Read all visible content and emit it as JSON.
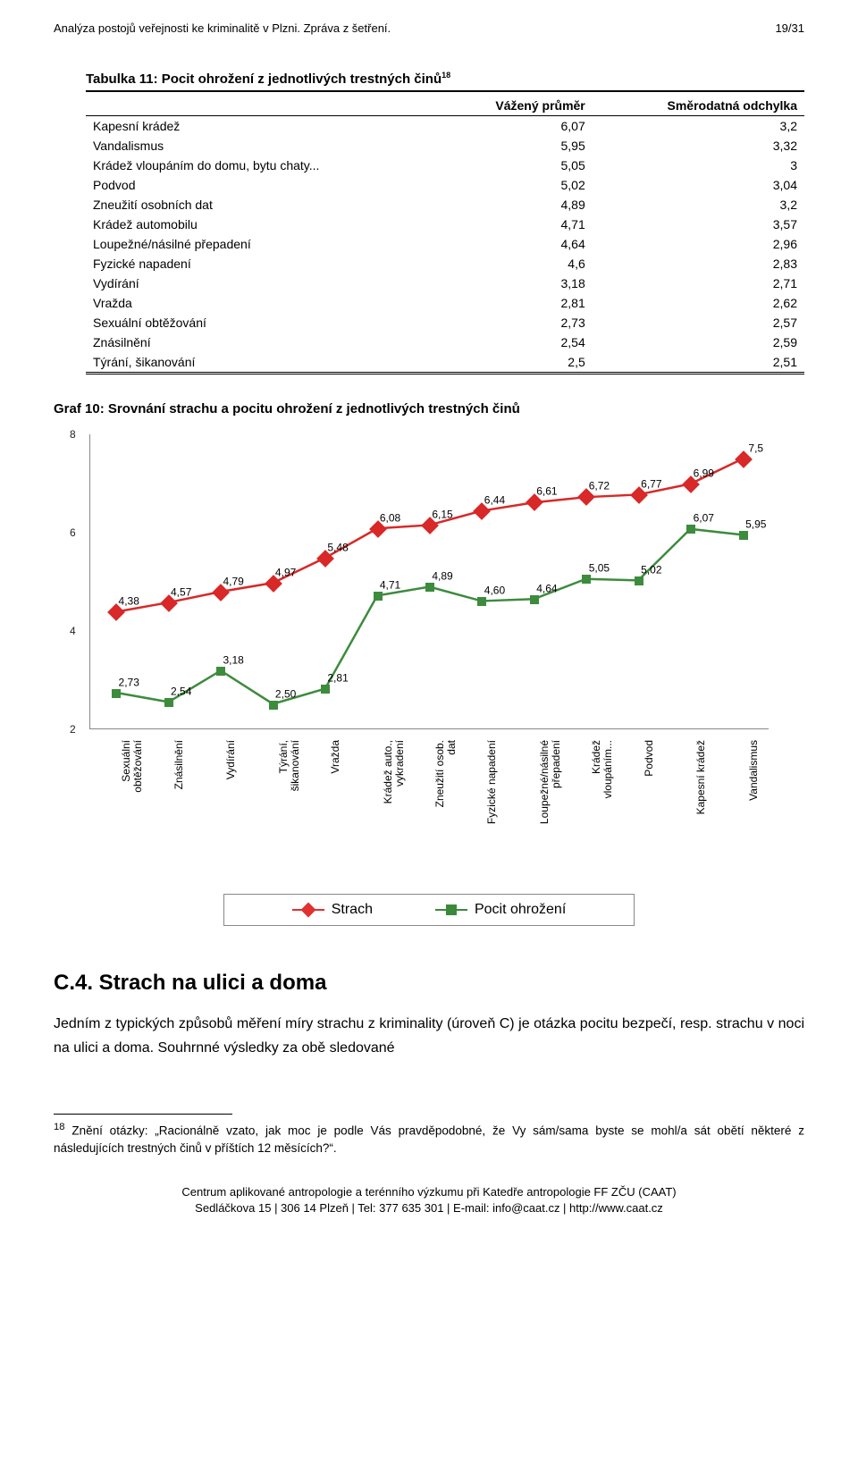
{
  "header": {
    "left": "Analýza postojů veřejnosti ke kriminalitě v Plzni. Zpráva z šetření.",
    "right": "19/31"
  },
  "table": {
    "title_prefix": "Tabulka 11: Pocit ohrožení z jednotlivých trestných činů",
    "title_sup": "18",
    "columns": [
      "",
      "Vážený průměr",
      "Směrodatná odchylka"
    ],
    "rows": [
      [
        "Kapesní krádež",
        "6,07",
        "3,2"
      ],
      [
        "Vandalismus",
        "5,95",
        "3,32"
      ],
      [
        "Krádež vloupáním do domu, bytu chaty...",
        "5,05",
        "3"
      ],
      [
        "Podvod",
        "5,02",
        "3,04"
      ],
      [
        "Zneužití osobních dat",
        "4,89",
        "3,2"
      ],
      [
        "Krádež automobilu",
        "4,71",
        "3,57"
      ],
      [
        "Loupežné/násilné přepadení",
        "4,64",
        "2,96"
      ],
      [
        "Fyzické napadení",
        "4,6",
        "2,83"
      ],
      [
        "Vydírání",
        "3,18",
        "2,71"
      ],
      [
        "Vražda",
        "2,81",
        "2,62"
      ],
      [
        "Sexuální obtěžování",
        "2,73",
        "2,57"
      ],
      [
        "Znásilnění",
        "2,54",
        "2,59"
      ],
      [
        "Týrání, šikanování",
        "2,5",
        "2,51"
      ]
    ]
  },
  "chart": {
    "title": "Graf 10: Srovnání strachu a pocitu ohrožení z jednotlivých trestných činů",
    "ylim": [
      2,
      8
    ],
    "yticks": [
      2,
      4,
      6,
      8
    ],
    "categories": [
      "Sexuální\nobtěžování",
      "Znásilnění",
      "Vydírání",
      "Týrání,\nšikanování",
      "Vražda",
      "Krádež auto.,\nvykradení",
      "Zneužití osob.\ndat",
      "Fyzické napadení",
      "Loupežné/násilné\npřepadení",
      "Krádež\nvloupáním...",
      "Podvod",
      "Kapesní krádež",
      "Vandalismus"
    ],
    "series": [
      {
        "name": "Strach",
        "color": "#d82828",
        "marker": "diamond",
        "values": [
          4.38,
          4.57,
          4.79,
          4.97,
          5.48,
          6.08,
          6.15,
          6.44,
          6.61,
          6.72,
          6.77,
          6.99,
          7.5
        ],
        "labels": [
          "4,38",
          "4,57",
          "4,79",
          "4,97",
          "5,48",
          "6,08",
          "6,15",
          "6,44",
          "6,61",
          "6,72",
          "6,77",
          "6,99",
          "7,5"
        ]
      },
      {
        "name": "Pocit ohrožení",
        "color": "#3d8b3d",
        "marker": "square",
        "values": [
          2.73,
          2.54,
          3.18,
          2.5,
          2.81,
          4.71,
          4.89,
          4.6,
          4.64,
          5.05,
          5.02,
          6.07,
          5.95
        ],
        "labels": [
          "2,73",
          "2,54",
          "3,18",
          "2,50",
          "2,81",
          "4,71",
          "4,89",
          "4,60",
          "4,64",
          "5,05",
          "5,02",
          "6,07",
          "5,95"
        ]
      }
    ],
    "legend": [
      "Strach",
      "Pocit ohrožení"
    ]
  },
  "section": {
    "heading": "C.4.   Strach na ulici a doma",
    "body": "Jedním z typických způsobů měření míry strachu z kriminality (úroveň C) je otázka pocitu bezpečí, resp. strachu v noci na ulici a doma. Souhrnné výsledky za obě sledované"
  },
  "footnote": {
    "num": "18",
    "text": "Znění otázky: „Racionálně vzato, jak moc je podle Vás pravděpodobné, že Vy sám/sama byste se mohl/a sát obětí některé z následujících trestných činů v příštích 12 měsících?“."
  },
  "footer": {
    "line1": "Centrum aplikované antropologie a terénního výzkumu při Katedře antropologie FF ZČU (CAAT)",
    "line2": "Sedláčkova 15 | 306 14 Plzeň | Tel: 377 635 301 | E-mail: info@caat.cz | http://www.caat.cz"
  }
}
